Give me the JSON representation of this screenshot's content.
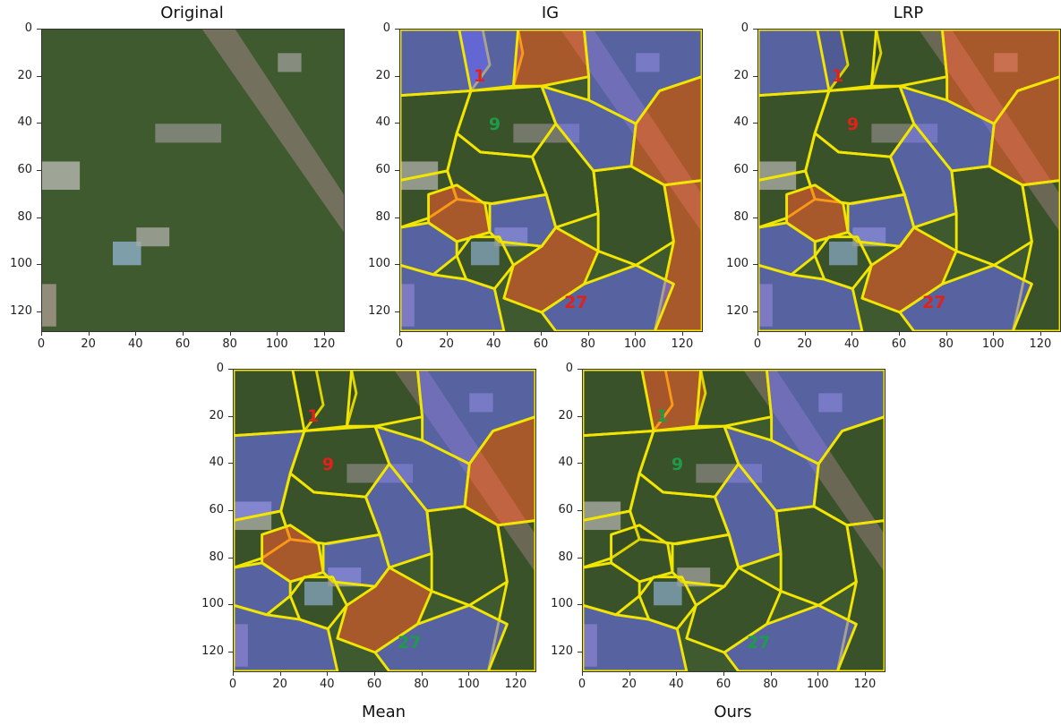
{
  "panels": [
    {
      "id": "original",
      "title": "Original",
      "labels": []
    },
    {
      "id": "ig",
      "title": "IG",
      "labels": [
        {
          "text": "1",
          "color": "#e0221a"
        },
        {
          "text": "9",
          "color": "#1f9a4a"
        },
        {
          "text": "27",
          "color": "#e0221a"
        }
      ]
    },
    {
      "id": "lrp",
      "title": "LRP",
      "labels": [
        {
          "text": "1",
          "color": "#e0221a"
        },
        {
          "text": "9",
          "color": "#e0221a"
        },
        {
          "text": "27",
          "color": "#e0221a"
        }
      ]
    },
    {
      "id": "mean",
      "title": "Mean",
      "labels": [
        {
          "text": "1",
          "color": "#e0221a"
        },
        {
          "text": "9",
          "color": "#e0221a"
        },
        {
          "text": "27",
          "color": "#1f9a4a"
        }
      ]
    },
    {
      "id": "ours",
      "title": "Ours",
      "labels": [
        {
          "text": "1",
          "color": "#1f9a4a"
        },
        {
          "text": "9",
          "color": "#1f9a4a"
        },
        {
          "text": "27",
          "color": "#1f9a4a"
        }
      ]
    }
  ],
  "axis_ticks": {
    "y": [
      "0",
      "20",
      "40",
      "60",
      "80",
      "100",
      "120"
    ],
    "x": [
      "0",
      "20",
      "40",
      "60",
      "80",
      "100",
      "120"
    ]
  },
  "colors": {
    "boundary": "#f2e600",
    "positive": "#ff5a2a",
    "negative": "#6c6cff",
    "grass": "#3f5a2e",
    "road": "#7c7565"
  }
}
